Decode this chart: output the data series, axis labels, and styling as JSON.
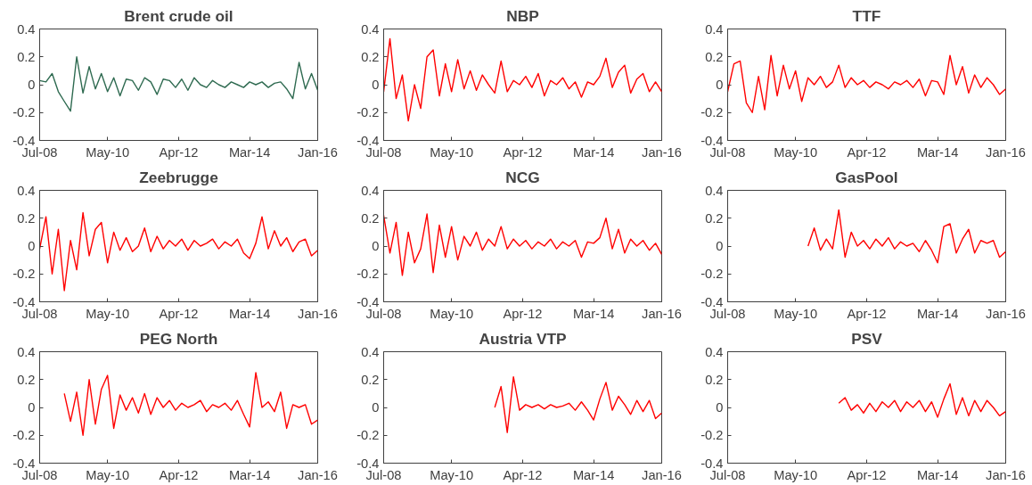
{
  "chart_data": [
    {
      "type": "line",
      "title": "Brent crude oil",
      "color": "#2e6a50",
      "xlim": [
        "2008-07",
        "2016-01"
      ],
      "ylim": [
        -0.4,
        0.4
      ],
      "yticks": [
        -0.4,
        -0.2,
        0,
        0.2,
        0.4
      ],
      "xticks": [
        {
          "value": "2008-07",
          "label": "Jul-08"
        },
        {
          "value": "2010-05",
          "label": "May-10"
        },
        {
          "value": "2012-04",
          "label": "Apr-12"
        },
        {
          "value": "2014-03",
          "label": "Mar-14"
        },
        {
          "value": "2016-01",
          "label": "Jan-16"
        }
      ],
      "x": [
        "2008-07",
        "2008-09",
        "2008-11",
        "2009-01",
        "2009-03",
        "2009-05",
        "2009-07",
        "2009-09",
        "2009-11",
        "2010-01",
        "2010-03",
        "2010-05",
        "2010-07",
        "2010-09",
        "2010-11",
        "2011-01",
        "2011-03",
        "2011-05",
        "2011-07",
        "2011-09",
        "2011-11",
        "2012-01",
        "2012-03",
        "2012-05",
        "2012-07",
        "2012-09",
        "2012-11",
        "2013-01",
        "2013-03",
        "2013-05",
        "2013-07",
        "2013-09",
        "2013-11",
        "2014-01",
        "2014-03",
        "2014-05",
        "2014-07",
        "2014-09",
        "2014-11",
        "2015-01",
        "2015-03",
        "2015-05",
        "2015-07",
        "2015-09",
        "2015-11",
        "2016-01"
      ],
      "values": [
        0.03,
        0.02,
        0.08,
        -0.05,
        -0.12,
        -0.19,
        0.2,
        -0.06,
        0.13,
        -0.03,
        0.08,
        -0.05,
        0.05,
        -0.08,
        0.04,
        0.03,
        -0.04,
        0.05,
        0.02,
        -0.07,
        0.04,
        0.03,
        -0.02,
        0.04,
        -0.04,
        0.05,
        0.0,
        -0.02,
        0.03,
        0.0,
        -0.02,
        0.02,
        0.0,
        -0.02,
        0.02,
        0.0,
        0.02,
        -0.02,
        0.01,
        0.02,
        -0.03,
        -0.1,
        0.16,
        -0.03,
        0.08,
        -0.04
      ]
    },
    {
      "type": "line",
      "title": "NBP",
      "color": "#ff0000",
      "xlim": [
        "2008-07",
        "2016-01"
      ],
      "ylim": [
        -0.4,
        0.4
      ],
      "yticks": [
        -0.4,
        -0.2,
        0,
        0.2,
        0.4
      ],
      "xticks": [
        {
          "value": "2008-07",
          "label": "Jul-08"
        },
        {
          "value": "2010-05",
          "label": "May-10"
        },
        {
          "value": "2012-04",
          "label": "Apr-12"
        },
        {
          "value": "2014-03",
          "label": "Mar-14"
        },
        {
          "value": "2016-01",
          "label": "Jan-16"
        }
      ],
      "x": [
        "2008-07",
        "2008-09",
        "2008-11",
        "2009-01",
        "2009-03",
        "2009-05",
        "2009-07",
        "2009-09",
        "2009-11",
        "2010-01",
        "2010-03",
        "2010-05",
        "2010-07",
        "2010-09",
        "2010-11",
        "2011-01",
        "2011-03",
        "2011-05",
        "2011-07",
        "2011-09",
        "2011-11",
        "2012-01",
        "2012-03",
        "2012-05",
        "2012-07",
        "2012-09",
        "2012-11",
        "2013-01",
        "2013-03",
        "2013-05",
        "2013-07",
        "2013-09",
        "2013-11",
        "2014-01",
        "2014-03",
        "2014-05",
        "2014-07",
        "2014-09",
        "2014-11",
        "2015-01",
        "2015-03",
        "2015-05",
        "2015-07",
        "2015-09",
        "2015-11",
        "2016-01"
      ],
      "values": [
        -0.05,
        0.33,
        -0.1,
        0.07,
        -0.26,
        0.0,
        -0.17,
        0.2,
        0.25,
        -0.08,
        0.15,
        -0.05,
        0.18,
        -0.03,
        0.1,
        -0.04,
        0.07,
        0.0,
        -0.06,
        0.17,
        -0.05,
        0.03,
        0.0,
        0.06,
        -0.02,
        0.08,
        -0.08,
        0.03,
        0.0,
        0.05,
        -0.03,
        0.02,
        -0.09,
        0.02,
        0.0,
        0.06,
        0.19,
        -0.02,
        0.09,
        0.14,
        -0.06,
        0.04,
        0.08,
        -0.05,
        0.02,
        -0.05
      ]
    },
    {
      "type": "line",
      "title": "TTF",
      "color": "#ff0000",
      "xlim": [
        "2008-07",
        "2016-01"
      ],
      "ylim": [
        -0.4,
        0.4
      ],
      "yticks": [
        -0.4,
        -0.2,
        0,
        0.2,
        0.4
      ],
      "xticks": [
        {
          "value": "2008-07",
          "label": "Jul-08"
        },
        {
          "value": "2010-05",
          "label": "May-10"
        },
        {
          "value": "2012-04",
          "label": "Apr-12"
        },
        {
          "value": "2014-03",
          "label": "Mar-14"
        },
        {
          "value": "2016-01",
          "label": "Jan-16"
        }
      ],
      "x": [
        "2008-07",
        "2008-09",
        "2008-11",
        "2009-01",
        "2009-03",
        "2009-05",
        "2009-07",
        "2009-09",
        "2009-11",
        "2010-01",
        "2010-03",
        "2010-05",
        "2010-07",
        "2010-09",
        "2010-11",
        "2011-01",
        "2011-03",
        "2011-05",
        "2011-07",
        "2011-09",
        "2011-11",
        "2012-01",
        "2012-03",
        "2012-05",
        "2012-07",
        "2012-09",
        "2012-11",
        "2013-01",
        "2013-03",
        "2013-05",
        "2013-07",
        "2013-09",
        "2013-11",
        "2014-01",
        "2014-03",
        "2014-05",
        "2014-07",
        "2014-09",
        "2014-11",
        "2015-01",
        "2015-03",
        "2015-05",
        "2015-07",
        "2015-09",
        "2015-11",
        "2016-01"
      ],
      "values": [
        -0.05,
        0.15,
        0.17,
        -0.13,
        -0.2,
        0.06,
        -0.18,
        0.21,
        -0.08,
        0.14,
        -0.03,
        0.1,
        -0.12,
        0.05,
        0.0,
        0.06,
        -0.02,
        0.02,
        0.14,
        -0.02,
        0.05,
        0.0,
        0.03,
        -0.02,
        0.02,
        0.0,
        -0.03,
        0.02,
        0.0,
        0.03,
        -0.02,
        0.04,
        -0.08,
        0.03,
        0.02,
        -0.07,
        0.21,
        0.0,
        0.13,
        -0.06,
        0.07,
        -0.02,
        0.05,
        0.0,
        -0.07,
        -0.03
      ]
    },
    {
      "type": "line",
      "title": "Zeebrugge",
      "color": "#ff0000",
      "xlim": [
        "2008-07",
        "2016-01"
      ],
      "ylim": [
        -0.4,
        0.4
      ],
      "yticks": [
        -0.4,
        -0.2,
        0,
        0.2,
        0.4
      ],
      "xticks": [
        {
          "value": "2008-07",
          "label": "Jul-08"
        },
        {
          "value": "2010-05",
          "label": "May-10"
        },
        {
          "value": "2012-04",
          "label": "Apr-12"
        },
        {
          "value": "2014-03",
          "label": "Mar-14"
        },
        {
          "value": "2016-01",
          "label": "Jan-16"
        }
      ],
      "x": [
        "2008-07",
        "2008-09",
        "2008-11",
        "2009-01",
        "2009-03",
        "2009-05",
        "2009-07",
        "2009-09",
        "2009-11",
        "2010-01",
        "2010-03",
        "2010-05",
        "2010-07",
        "2010-09",
        "2010-11",
        "2011-01",
        "2011-03",
        "2011-05",
        "2011-07",
        "2011-09",
        "2011-11",
        "2012-01",
        "2012-03",
        "2012-05",
        "2012-07",
        "2012-09",
        "2012-11",
        "2013-01",
        "2013-03",
        "2013-05",
        "2013-07",
        "2013-09",
        "2013-11",
        "2014-01",
        "2014-03",
        "2014-05",
        "2014-07",
        "2014-09",
        "2014-11",
        "2015-01",
        "2015-03",
        "2015-05",
        "2015-07",
        "2015-09",
        "2015-11",
        "2016-01"
      ],
      "values": [
        -0.02,
        0.21,
        -0.2,
        0.12,
        -0.32,
        0.04,
        -0.17,
        0.24,
        -0.07,
        0.12,
        0.17,
        -0.12,
        0.1,
        -0.03,
        0.06,
        -0.04,
        0.0,
        0.13,
        -0.04,
        0.07,
        -0.02,
        0.04,
        0.0,
        0.05,
        -0.03,
        0.04,
        0.0,
        0.02,
        0.05,
        -0.02,
        0.03,
        0.0,
        0.05,
        -0.05,
        -0.09,
        0.02,
        0.21,
        -0.02,
        0.11,
        0.0,
        0.06,
        -0.04,
        0.03,
        0.05,
        -0.07,
        -0.03
      ]
    },
    {
      "type": "line",
      "title": "NCG",
      "color": "#ff0000",
      "xlim": [
        "2008-07",
        "2016-01"
      ],
      "ylim": [
        -0.4,
        0.4
      ],
      "yticks": [
        -0.4,
        -0.2,
        0,
        0.2,
        0.4
      ],
      "xticks": [
        {
          "value": "2008-07",
          "label": "Jul-08"
        },
        {
          "value": "2010-05",
          "label": "May-10"
        },
        {
          "value": "2012-04",
          "label": "Apr-12"
        },
        {
          "value": "2014-03",
          "label": "Mar-14"
        },
        {
          "value": "2016-01",
          "label": "Jan-16"
        }
      ],
      "x": [
        "2008-07",
        "2008-09",
        "2008-11",
        "2009-01",
        "2009-03",
        "2009-05",
        "2009-07",
        "2009-09",
        "2009-11",
        "2010-01",
        "2010-03",
        "2010-05",
        "2010-07",
        "2010-09",
        "2010-11",
        "2011-01",
        "2011-03",
        "2011-05",
        "2011-07",
        "2011-09",
        "2011-11",
        "2012-01",
        "2012-03",
        "2012-05",
        "2012-07",
        "2012-09",
        "2012-11",
        "2013-01",
        "2013-03",
        "2013-05",
        "2013-07",
        "2013-09",
        "2013-11",
        "2014-01",
        "2014-03",
        "2014-05",
        "2014-07",
        "2014-09",
        "2014-11",
        "2015-01",
        "2015-03",
        "2015-05",
        "2015-07",
        "2015-09",
        "2015-11",
        "2016-01"
      ],
      "values": [
        0.22,
        -0.05,
        0.17,
        -0.21,
        0.1,
        -0.12,
        -0.02,
        0.23,
        -0.19,
        0.15,
        -0.08,
        0.14,
        -0.1,
        0.07,
        0.0,
        0.1,
        -0.03,
        0.05,
        0.0,
        0.14,
        -0.02,
        0.05,
        0.0,
        0.04,
        -0.02,
        0.03,
        0.0,
        0.05,
        -0.02,
        0.03,
        0.0,
        0.04,
        -0.08,
        0.03,
        0.02,
        0.06,
        0.2,
        -0.02,
        0.12,
        -0.05,
        0.05,
        0.0,
        0.04,
        -0.03,
        0.02,
        -0.06
      ]
    },
    {
      "type": "line",
      "title": "GasPool",
      "color": "#ff0000",
      "xlim": [
        "2008-07",
        "2016-01"
      ],
      "ylim": [
        -0.4,
        0.4
      ],
      "yticks": [
        -0.4,
        -0.2,
        0,
        0.2,
        0.4
      ],
      "xticks": [
        {
          "value": "2008-07",
          "label": "Jul-08"
        },
        {
          "value": "2010-05",
          "label": "May-10"
        },
        {
          "value": "2012-04",
          "label": "Apr-12"
        },
        {
          "value": "2014-03",
          "label": "Mar-14"
        },
        {
          "value": "2016-01",
          "label": "Jan-16"
        }
      ],
      "x": [
        "2010-09",
        "2010-11",
        "2011-01",
        "2011-03",
        "2011-05",
        "2011-07",
        "2011-09",
        "2011-11",
        "2012-01",
        "2012-03",
        "2012-05",
        "2012-07",
        "2012-09",
        "2012-11",
        "2013-01",
        "2013-03",
        "2013-05",
        "2013-07",
        "2013-09",
        "2013-11",
        "2014-01",
        "2014-03",
        "2014-05",
        "2014-07",
        "2014-09",
        "2014-11",
        "2015-01",
        "2015-03",
        "2015-05",
        "2015-07",
        "2015-09",
        "2015-11",
        "2016-01"
      ],
      "values": [
        0.0,
        0.13,
        -0.03,
        0.05,
        -0.02,
        0.26,
        -0.08,
        0.1,
        0.0,
        0.04,
        -0.02,
        0.05,
        0.0,
        0.06,
        -0.02,
        0.03,
        0.0,
        0.02,
        -0.04,
        0.04,
        -0.03,
        -0.12,
        0.14,
        0.16,
        -0.05,
        0.05,
        0.12,
        -0.05,
        0.04,
        0.02,
        0.04,
        -0.08,
        -0.04
      ]
    },
    {
      "type": "line",
      "title": "PEG North",
      "color": "#ff0000",
      "xlim": [
        "2008-07",
        "2016-01"
      ],
      "ylim": [
        -0.4,
        0.4
      ],
      "yticks": [
        -0.4,
        -0.2,
        0,
        0.2,
        0.4
      ],
      "xticks": [
        {
          "value": "2008-07",
          "label": "Jul-08"
        },
        {
          "value": "2010-05",
          "label": "May-10"
        },
        {
          "value": "2012-04",
          "label": "Apr-12"
        },
        {
          "value": "2014-03",
          "label": "Mar-14"
        },
        {
          "value": "2016-01",
          "label": "Jan-16"
        }
      ],
      "x": [
        "2009-03",
        "2009-05",
        "2009-07",
        "2009-09",
        "2009-11",
        "2010-01",
        "2010-03",
        "2010-05",
        "2010-07",
        "2010-09",
        "2010-11",
        "2011-01",
        "2011-03",
        "2011-05",
        "2011-07",
        "2011-09",
        "2011-11",
        "2012-01",
        "2012-03",
        "2012-05",
        "2012-07",
        "2012-09",
        "2012-11",
        "2013-01",
        "2013-03",
        "2013-05",
        "2013-07",
        "2013-09",
        "2013-11",
        "2014-01",
        "2014-03",
        "2014-05",
        "2014-07",
        "2014-09",
        "2014-11",
        "2015-01",
        "2015-03",
        "2015-05",
        "2015-07",
        "2015-09",
        "2015-11",
        "2016-01"
      ],
      "values": [
        0.1,
        -0.1,
        0.11,
        -0.2,
        0.2,
        -0.12,
        0.13,
        0.23,
        -0.15,
        0.09,
        -0.02,
        0.07,
        -0.04,
        0.1,
        -0.05,
        0.07,
        0.0,
        0.05,
        -0.02,
        0.03,
        0.0,
        0.02,
        0.05,
        -0.03,
        0.02,
        0.0,
        0.03,
        -0.02,
        0.05,
        -0.05,
        -0.14,
        0.25,
        0.0,
        0.04,
        -0.03,
        0.11,
        -0.15,
        0.02,
        0.0,
        0.02,
        -0.12,
        -0.09
      ]
    },
    {
      "type": "line",
      "title": "Austria VTP",
      "color": "#ff0000",
      "xlim": [
        "2008-07",
        "2016-01"
      ],
      "ylim": [
        -0.4,
        0.4
      ],
      "yticks": [
        -0.4,
        -0.2,
        0,
        0.2,
        0.4
      ],
      "xticks": [
        {
          "value": "2008-07",
          "label": "Jul-08"
        },
        {
          "value": "2010-05",
          "label": "May-10"
        },
        {
          "value": "2012-04",
          "label": "Apr-12"
        },
        {
          "value": "2014-03",
          "label": "Mar-14"
        },
        {
          "value": "2016-01",
          "label": "Jan-16"
        }
      ],
      "x": [
        "2011-07",
        "2011-09",
        "2011-11",
        "2012-01",
        "2012-03",
        "2012-05",
        "2012-07",
        "2012-09",
        "2012-11",
        "2013-01",
        "2013-03",
        "2013-05",
        "2013-07",
        "2013-09",
        "2013-11",
        "2014-01",
        "2014-03",
        "2014-05",
        "2014-07",
        "2014-09",
        "2014-11",
        "2015-01",
        "2015-03",
        "2015-05",
        "2015-07",
        "2015-09",
        "2015-11",
        "2016-01"
      ],
      "values": [
        0.0,
        0.15,
        -0.18,
        0.22,
        -0.02,
        0.02,
        0.0,
        0.02,
        -0.01,
        0.02,
        0.0,
        0.01,
        0.03,
        -0.02,
        0.04,
        -0.02,
        -0.09,
        0.06,
        0.18,
        -0.02,
        0.08,
        0.02,
        -0.05,
        0.05,
        -0.03,
        0.05,
        -0.08,
        -0.04
      ]
    },
    {
      "type": "line",
      "title": "PSV",
      "color": "#ff0000",
      "xlim": [
        "2008-07",
        "2016-01"
      ],
      "ylim": [
        -0.4,
        0.4
      ],
      "yticks": [
        -0.4,
        -0.2,
        0,
        0.2,
        0.4
      ],
      "xticks": [
        {
          "value": "2008-07",
          "label": "Jul-08"
        },
        {
          "value": "2010-05",
          "label": "May-10"
        },
        {
          "value": "2012-04",
          "label": "Apr-12"
        },
        {
          "value": "2014-03",
          "label": "Mar-14"
        },
        {
          "value": "2016-01",
          "label": "Jan-16"
        }
      ],
      "x": [
        "2011-07",
        "2011-09",
        "2011-11",
        "2012-01",
        "2012-03",
        "2012-05",
        "2012-07",
        "2012-09",
        "2012-11",
        "2013-01",
        "2013-03",
        "2013-05",
        "2013-07",
        "2013-09",
        "2013-11",
        "2014-01",
        "2014-03",
        "2014-05",
        "2014-07",
        "2014-09",
        "2014-11",
        "2015-01",
        "2015-03",
        "2015-05",
        "2015-07",
        "2015-09",
        "2015-11",
        "2016-01"
      ],
      "values": [
        0.03,
        0.07,
        -0.02,
        0.02,
        -0.04,
        0.03,
        -0.03,
        0.04,
        0.0,
        0.05,
        -0.03,
        0.04,
        0.0,
        0.05,
        -0.03,
        0.04,
        -0.07,
        0.06,
        0.17,
        -0.05,
        0.07,
        -0.06,
        0.05,
        -0.03,
        0.05,
        0.0,
        -0.06,
        -0.03
      ]
    }
  ]
}
